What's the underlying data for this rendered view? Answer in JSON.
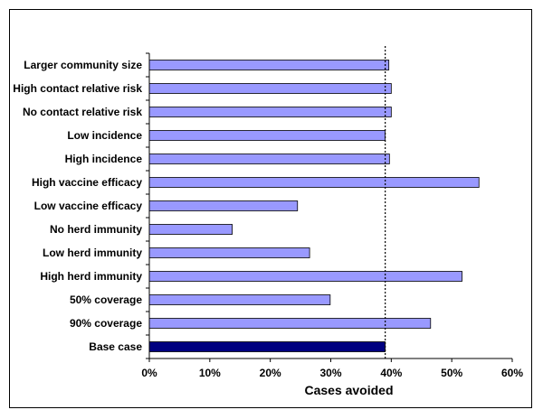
{
  "chart_data": {
    "type": "bar",
    "orientation": "horizontal",
    "categories": [
      "Larger community size",
      "High contact relative risk",
      "No contact relative risk",
      "Low incidence",
      "High incidence",
      "High vaccine efficacy",
      "Low vaccine efficacy",
      "No herd immunity",
      "Low herd immunity",
      "High herd immunity",
      "50% coverage",
      "90% coverage",
      "Base case"
    ],
    "values": [
      39.6,
      40.0,
      40.0,
      39.0,
      39.7,
      54.5,
      24.5,
      13.7,
      26.5,
      51.7,
      29.9,
      46.5,
      39.0
    ],
    "xlabel": "Cases avoided",
    "ylabel": "",
    "title": "",
    "xlim": [
      0,
      60
    ],
    "xticks": [
      "0%",
      "10%",
      "20%",
      "30%",
      "40%",
      "50%",
      "60%"
    ],
    "reference_line": {
      "value": 39.0,
      "style": "dotted"
    },
    "grid": false,
    "colors": {
      "bar_fill": "#9999ff",
      "bar_stroke": "#000000",
      "base_case_fill": "#000080"
    }
  }
}
